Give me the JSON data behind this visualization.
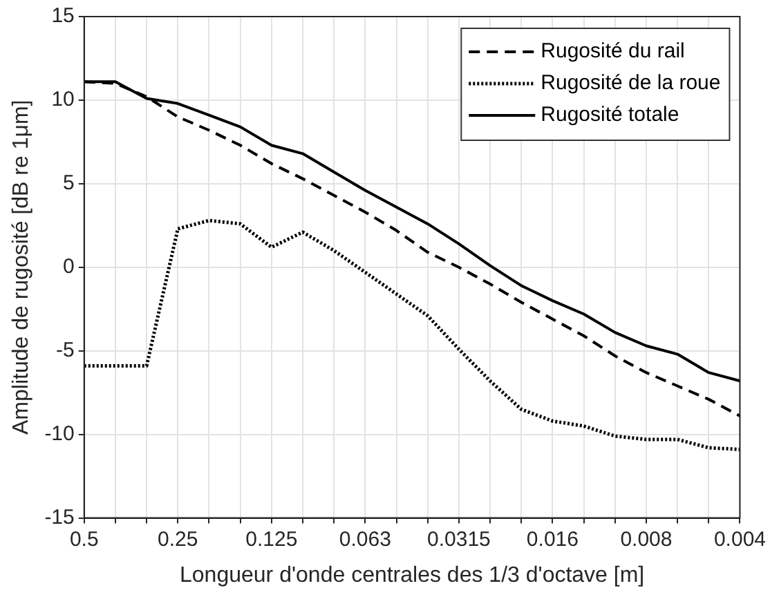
{
  "chart_data": {
    "type": "line",
    "xlabel": "Longueur d'onde centrales des 1/3 d'octave [m]",
    "ylabel": "Amplitude de rugosité [dB re 1μm]",
    "categories": [
      "0.5",
      null,
      null,
      "0.25",
      null,
      null,
      "0.125",
      null,
      null,
      "0.063",
      null,
      null,
      "0.0315",
      null,
      null,
      "0.016",
      null,
      null,
      "0.008",
      null,
      null,
      "0.004"
    ],
    "series": [
      {
        "name": "Rugosité du rail",
        "color": "#000000",
        "line_style": "dashed",
        "values": [
          11.1,
          11.0,
          10.2,
          9.0,
          8.2,
          7.3,
          6.2,
          5.3,
          4.3,
          3.3,
          2.2,
          0.9,
          0.0,
          -1.0,
          -2.1,
          -3.1,
          -4.1,
          -5.3,
          -6.3,
          -7.1,
          -7.9,
          -8.9
        ]
      },
      {
        "name": "Rugosité de la roue",
        "color": "#000000",
        "line_style": "dotted",
        "values": [
          -5.9,
          -5.9,
          -5.9,
          2.3,
          2.8,
          2.6,
          1.2,
          2.1,
          1.0,
          -0.3,
          -1.6,
          -2.9,
          -4.9,
          -6.8,
          -8.5,
          -9.2,
          -9.5,
          -10.1,
          -10.3,
          -10.3,
          -10.8,
          -10.9
        ]
      },
      {
        "name": "Rugosité totale",
        "color": "#000000",
        "line_style": "solid",
        "values": [
          11.1,
          11.1,
          10.1,
          9.8,
          9.1,
          8.4,
          7.3,
          6.8,
          5.7,
          4.6,
          3.6,
          2.6,
          1.4,
          0.1,
          -1.1,
          -2.0,
          -2.8,
          -3.9,
          -4.7,
          -5.2,
          -6.3,
          -6.8
        ]
      }
    ],
    "ylim": [
      -15,
      15
    ],
    "yticks": [
      -15,
      -10,
      -5,
      0,
      5,
      10,
      15
    ],
    "grid": true,
    "legend": "top right",
    "marker": "none"
  }
}
